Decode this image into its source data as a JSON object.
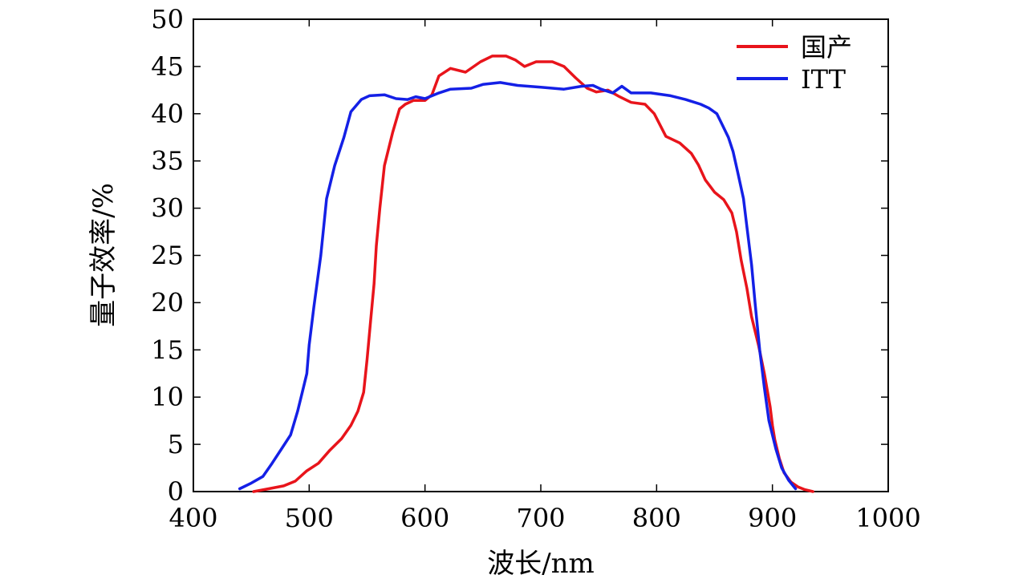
{
  "chart_data": {
    "type": "line",
    "title": "",
    "xlabel": "波长/nm",
    "ylabel": "量子效率/%",
    "xlim": [
      400,
      1000
    ],
    "ylim": [
      0,
      50
    ],
    "xticks": [
      400,
      500,
      600,
      700,
      800,
      900,
      1000
    ],
    "yticks": [
      0,
      5,
      10,
      15,
      20,
      25,
      30,
      35,
      40,
      45,
      50
    ],
    "grid": false,
    "legend_position": "top-right",
    "series": [
      {
        "name": "国产",
        "color": "#e8141b",
        "points": [
          [
            452,
            0.0
          ],
          [
            465,
            0.3
          ],
          [
            478,
            0.6
          ],
          [
            488,
            1.1
          ],
          [
            498,
            2.2
          ],
          [
            508,
            3.0
          ],
          [
            518,
            4.4
          ],
          [
            528,
            5.6
          ],
          [
            536,
            7.0
          ],
          [
            542,
            8.5
          ],
          [
            547,
            10.5
          ],
          [
            550,
            14.0
          ],
          [
            553,
            18.0
          ],
          [
            556,
            22.0
          ],
          [
            558,
            26.0
          ],
          [
            561,
            30.0
          ],
          [
            565,
            34.5
          ],
          [
            572,
            38.0
          ],
          [
            578,
            40.5
          ],
          [
            583,
            41.0
          ],
          [
            590,
            41.4
          ],
          [
            600,
            41.4
          ],
          [
            606,
            42.0
          ],
          [
            612,
            44.0
          ],
          [
            622,
            44.8
          ],
          [
            635,
            44.4
          ],
          [
            648,
            45.5
          ],
          [
            658,
            46.1
          ],
          [
            670,
            46.1
          ],
          [
            678,
            45.7
          ],
          [
            686,
            45.0
          ],
          [
            696,
            45.5
          ],
          [
            710,
            45.5
          ],
          [
            720,
            45.0
          ],
          [
            730,
            43.8
          ],
          [
            740,
            42.7
          ],
          [
            748,
            42.3
          ],
          [
            758,
            42.5
          ],
          [
            768,
            41.8
          ],
          [
            778,
            41.2
          ],
          [
            790,
            41.0
          ],
          [
            798,
            40.0
          ],
          [
            808,
            37.6
          ],
          [
            820,
            36.9
          ],
          [
            830,
            35.8
          ],
          [
            836,
            34.6
          ],
          [
            842,
            33.0
          ],
          [
            850,
            31.7
          ],
          [
            858,
            30.9
          ],
          [
            865,
            29.5
          ],
          [
            869,
            27.5
          ],
          [
            873,
            24.5
          ],
          [
            878,
            21.5
          ],
          [
            882,
            18.5
          ],
          [
            888,
            15.5
          ],
          [
            893,
            12.5
          ],
          [
            898,
            9.0
          ],
          [
            900,
            7.0
          ],
          [
            902,
            5.5
          ],
          [
            906,
            3.5
          ],
          [
            910,
            2.0
          ],
          [
            916,
            1.0
          ],
          [
            922,
            0.5
          ],
          [
            928,
            0.2
          ],
          [
            935,
            0.0
          ]
        ]
      },
      {
        "name": "ITT",
        "color": "#1420e6",
        "points": [
          [
            440,
            0.3
          ],
          [
            450,
            0.9
          ],
          [
            460,
            1.6
          ],
          [
            468,
            3.0
          ],
          [
            476,
            4.5
          ],
          [
            484,
            6.0
          ],
          [
            490,
            8.5
          ],
          [
            494,
            10.5
          ],
          [
            498,
            12.5
          ],
          [
            500,
            15.5
          ],
          [
            504,
            19.5
          ],
          [
            510,
            25.0
          ],
          [
            515,
            31.0
          ],
          [
            522,
            34.5
          ],
          [
            530,
            37.5
          ],
          [
            536,
            40.2
          ],
          [
            545,
            41.5
          ],
          [
            552,
            41.9
          ],
          [
            565,
            42.0
          ],
          [
            575,
            41.6
          ],
          [
            585,
            41.5
          ],
          [
            592,
            41.8
          ],
          [
            600,
            41.6
          ],
          [
            612,
            42.2
          ],
          [
            622,
            42.6
          ],
          [
            640,
            42.7
          ],
          [
            650,
            43.1
          ],
          [
            665,
            43.3
          ],
          [
            680,
            43.0
          ],
          [
            700,
            42.8
          ],
          [
            720,
            42.6
          ],
          [
            735,
            42.9
          ],
          [
            745,
            43.0
          ],
          [
            752,
            42.6
          ],
          [
            762,
            42.2
          ],
          [
            770,
            42.9
          ],
          [
            778,
            42.2
          ],
          [
            795,
            42.2
          ],
          [
            812,
            41.9
          ],
          [
            825,
            41.5
          ],
          [
            838,
            41.0
          ],
          [
            845,
            40.6
          ],
          [
            852,
            40.0
          ],
          [
            856,
            39.0
          ],
          [
            862,
            37.5
          ],
          [
            866,
            36.0
          ],
          [
            870,
            33.8
          ],
          [
            875,
            31.0
          ],
          [
            878,
            28.0
          ],
          [
            882,
            24.0
          ],
          [
            885,
            20.0
          ],
          [
            889,
            15.0
          ],
          [
            893,
            11.0
          ],
          [
            897,
            7.5
          ],
          [
            903,
            4.5
          ],
          [
            908,
            2.5
          ],
          [
            914,
            1.2
          ],
          [
            920,
            0.3
          ]
        ]
      }
    ]
  }
}
